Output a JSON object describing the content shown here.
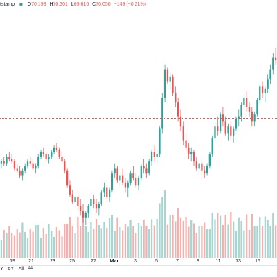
{
  "legend": {
    "symbol": "tstamp",
    "open_label": "O",
    "open": "70,198",
    "high_label": "H",
    "high": "70,301",
    "low_label": "L",
    "low": "69,616",
    "close_label": "C",
    "close": "70,050",
    "change": "−149 (−0.21%)"
  },
  "x_axis": {
    "labels": [
      "19",
      "21",
      "23",
      "25",
      "27",
      "Mar",
      "3",
      "5",
      "7",
      "9",
      "11",
      "13",
      "15"
    ]
  },
  "range_buttons": [
    "Y",
    "5Y",
    "All"
  ],
  "colors": {
    "up": "#26a69a",
    "down": "#ef5350",
    "up_vol": "#a3d7d1",
    "down_vol": "#f5b0ad"
  },
  "chart_data": {
    "type": "candlestick",
    "note_scale": "prices in chart value units",
    "candles": [
      [
        50,
        52,
        48,
        51
      ],
      [
        51,
        53,
        49,
        50
      ],
      [
        50,
        54,
        49,
        53
      ],
      [
        53,
        55,
        51,
        52
      ],
      [
        52,
        54,
        50,
        51
      ],
      [
        51,
        52,
        47,
        48
      ],
      [
        48,
        50,
        46,
        47
      ],
      [
        47,
        49,
        44,
        45
      ],
      [
        45,
        48,
        43,
        47
      ],
      [
        47,
        50,
        46,
        49
      ],
      [
        49,
        52,
        48,
        51
      ],
      [
        51,
        53,
        49,
        50
      ],
      [
        50,
        52,
        47,
        48
      ],
      [
        48,
        50,
        46,
        49
      ],
      [
        49,
        54,
        48,
        53
      ],
      [
        53,
        56,
        52,
        55
      ],
      [
        55,
        57,
        53,
        54
      ],
      [
        54,
        55,
        51,
        52
      ],
      [
        52,
        54,
        50,
        53
      ],
      [
        53,
        56,
        52,
        55
      ],
      [
        55,
        58,
        54,
        57
      ],
      [
        57,
        59,
        55,
        56
      ],
      [
        56,
        57,
        52,
        53
      ],
      [
        53,
        55,
        50,
        51
      ],
      [
        51,
        52,
        46,
        47
      ],
      [
        47,
        48,
        40,
        41
      ],
      [
        41,
        43,
        36,
        37
      ],
      [
        37,
        39,
        33,
        34
      ],
      [
        34,
        37,
        31,
        36
      ],
      [
        36,
        38,
        30,
        32
      ],
      [
        32,
        35,
        28,
        30
      ],
      [
        30,
        33,
        25,
        27
      ],
      [
        27,
        30,
        24,
        29
      ],
      [
        29,
        33,
        27,
        32
      ],
      [
        32,
        36,
        30,
        35
      ],
      [
        35,
        37,
        31,
        33
      ],
      [
        33,
        35,
        29,
        31
      ],
      [
        31,
        34,
        28,
        33
      ],
      [
        33,
        39,
        32,
        38
      ],
      [
        38,
        42,
        36,
        40
      ],
      [
        40,
        41,
        35,
        36
      ],
      [
        36,
        40,
        34,
        39
      ],
      [
        39,
        47,
        38,
        46
      ],
      [
        46,
        50,
        44,
        48
      ],
      [
        48,
        49,
        42,
        43
      ],
      [
        43,
        46,
        40,
        45
      ],
      [
        45,
        48,
        41,
        42
      ],
      [
        42,
        44,
        38,
        40
      ],
      [
        40,
        43,
        36,
        42
      ],
      [
        42,
        47,
        41,
        46
      ],
      [
        46,
        49,
        43,
        44
      ],
      [
        44,
        46,
        40,
        41
      ],
      [
        41,
        45,
        39,
        44
      ],
      [
        44,
        50,
        43,
        49
      ],
      [
        49,
        52,
        46,
        48
      ],
      [
        48,
        50,
        44,
        46
      ],
      [
        46,
        52,
        45,
        51
      ],
      [
        51,
        56,
        49,
        55
      ],
      [
        55,
        58,
        51,
        53
      ],
      [
        53,
        56,
        50,
        54
      ],
      [
        54,
        66,
        53,
        65
      ],
      [
        65,
        80,
        63,
        78
      ],
      [
        78,
        92,
        76,
        90
      ],
      [
        90,
        91,
        84,
        85
      ],
      [
        85,
        89,
        82,
        87
      ],
      [
        87,
        88,
        79,
        80
      ],
      [
        80,
        83,
        74,
        76
      ],
      [
        76,
        78,
        68,
        70
      ],
      [
        70,
        73,
        64,
        66
      ],
      [
        66,
        68,
        58,
        60
      ],
      [
        60,
        63,
        55,
        57
      ],
      [
        57,
        59,
        52,
        54
      ],
      [
        54,
        57,
        51,
        55
      ],
      [
        55,
        56,
        49,
        51
      ],
      [
        51,
        53,
        47,
        48
      ],
      [
        48,
        51,
        46,
        50
      ],
      [
        50,
        52,
        45,
        47
      ],
      [
        47,
        49,
        44,
        46
      ],
      [
        46,
        50,
        45,
        49
      ],
      [
        49,
        55,
        48,
        54
      ],
      [
        54,
        62,
        53,
        61
      ],
      [
        61,
        68,
        59,
        66
      ],
      [
        66,
        70,
        62,
        64
      ],
      [
        64,
        72,
        63,
        71
      ],
      [
        71,
        74,
        66,
        68
      ],
      [
        68,
        70,
        62,
        63
      ],
      [
        63,
        67,
        60,
        66
      ],
      [
        66,
        68,
        60,
        62
      ],
      [
        62,
        66,
        59,
        65
      ],
      [
        65,
        70,
        64,
        69
      ],
      [
        69,
        73,
        66,
        70
      ],
      [
        70,
        76,
        68,
        75
      ],
      [
        75,
        80,
        73,
        78
      ],
      [
        78,
        81,
        72,
        74
      ],
      [
        74,
        76,
        70,
        72
      ],
      [
        72,
        74,
        66,
        68
      ],
      [
        68,
        72,
        66,
        71
      ],
      [
        71,
        78,
        70,
        77
      ],
      [
        77,
        84,
        76,
        83
      ],
      [
        83,
        85,
        78,
        80
      ],
      [
        80,
        83,
        76,
        82
      ],
      [
        82,
        88,
        80,
        86
      ],
      [
        86,
        92,
        84,
        90
      ],
      [
        90,
        97,
        88,
        95
      ],
      [
        95,
        99,
        92,
        94
      ]
    ]
  }
}
